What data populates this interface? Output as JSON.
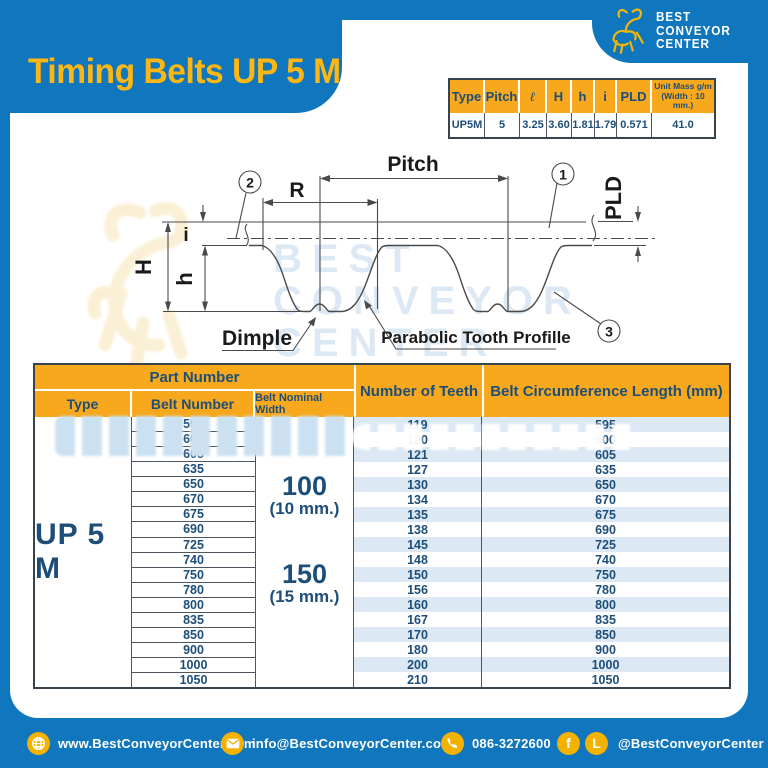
{
  "title": "Timing Belts UP 5 M",
  "logo": {
    "lines": [
      "BEST",
      "CONVEYOR",
      "CENTER"
    ]
  },
  "spec_table": {
    "columns": [
      {
        "label": "Type",
        "value": "UP5M"
      },
      {
        "label": "Pitch",
        "value": "5"
      },
      {
        "label": "ℓ",
        "value": "3.25"
      },
      {
        "label": "H",
        "value": "3.60"
      },
      {
        "label": "h",
        "value": "1.81"
      },
      {
        "label": "i",
        "value": "1.79"
      },
      {
        "label": "PLD",
        "value": "0.571"
      }
    ],
    "unit_mass": {
      "label_line1": "Unit Mass g/m",
      "label_line2": "(Width : 10 mm.)",
      "value": "41.0"
    }
  },
  "diagram": {
    "labels": {
      "pitch": "Pitch",
      "r": "R",
      "pld": "PLD",
      "i": "i",
      "big_h": "H",
      "small_h": "h",
      "dimple": "Dimple",
      "tooth_profile": "Parabolic Tooth Profille"
    },
    "balloons": {
      "b1": "1",
      "b2": "2",
      "b3": "3"
    },
    "watermark": {
      "line1": "BEST",
      "line2": "CONVEYOR",
      "line3": "CENTER"
    }
  },
  "parts_table": {
    "headers": {
      "part_number": "Part Number",
      "type": "Type",
      "belt_number": "Belt Number",
      "belt_nominal_width": "Belt Nominal Width",
      "number_of_teeth": "Number of Teeth",
      "belt_circumference": "Belt Circumference Length (mm)"
    },
    "type_value": "UP 5 M",
    "nominal_widths": [
      {
        "value": "100",
        "unit": "(10 mm.)"
      },
      {
        "value": "150",
        "unit": "(15 mm.)"
      }
    ],
    "rows": [
      {
        "belt_number": "595",
        "teeth": "119",
        "length": "595"
      },
      {
        "belt_number": "600",
        "teeth": "120",
        "length": "600"
      },
      {
        "belt_number": "605",
        "teeth": "121",
        "length": "605"
      },
      {
        "belt_number": "635",
        "teeth": "127",
        "length": "635"
      },
      {
        "belt_number": "650",
        "teeth": "130",
        "length": "650"
      },
      {
        "belt_number": "670",
        "teeth": "134",
        "length": "670"
      },
      {
        "belt_number": "675",
        "teeth": "135",
        "length": "675"
      },
      {
        "belt_number": "690",
        "teeth": "138",
        "length": "690"
      },
      {
        "belt_number": "725",
        "teeth": "145",
        "length": "725"
      },
      {
        "belt_number": "740",
        "teeth": "148",
        "length": "740"
      },
      {
        "belt_number": "750",
        "teeth": "150",
        "length": "750"
      },
      {
        "belt_number": "780",
        "teeth": "156",
        "length": "780"
      },
      {
        "belt_number": "800",
        "teeth": "160",
        "length": "800"
      },
      {
        "belt_number": "835",
        "teeth": "167",
        "length": "835"
      },
      {
        "belt_number": "850",
        "teeth": "170",
        "length": "850"
      },
      {
        "belt_number": "900",
        "teeth": "180",
        "length": "900"
      },
      {
        "belt_number": "1000",
        "teeth": "200",
        "length": "1000"
      },
      {
        "belt_number": "1050",
        "teeth": "210",
        "length": "1050"
      }
    ]
  },
  "footer": {
    "website": "www.BestConveyorCenter.com",
    "email": "info@BestConveyorCenter.com",
    "phone": "086-3272600",
    "social": "@BestConveyorCenter",
    "facebook_glyph": "f",
    "line_glyph": "L"
  },
  "colors": {
    "page_blue": "#1076BD",
    "accent_orange": "#F7A81C",
    "title_yellow": "#FDB714",
    "navy_text": "#1D4E79",
    "row_light_blue": "#DCE9F5",
    "icon_yellow": "#F3B200",
    "watermark_blue": "#DCE9F5"
  }
}
